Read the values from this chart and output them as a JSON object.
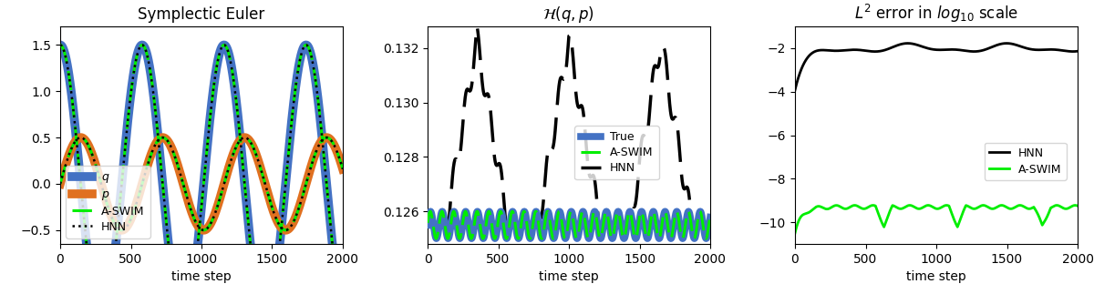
{
  "n_steps": 2000,
  "left_title": "Symplectic Euler",
  "right_title": "$L^2$ error in $log_{10}$ scale",
  "xlabel": "time step",
  "color_q": "#4472c4",
  "color_p": "#e07020",
  "color_aswim": "#00ee00",
  "color_true": "#4472c4",
  "left_ylim": [
    -0.65,
    1.7
  ],
  "left_yticks": [
    -0.5,
    0.0,
    0.5,
    1.0,
    1.5
  ],
  "mid_ylim": [
    0.1248,
    0.1328
  ],
  "mid_yticks": [
    0.126,
    0.128,
    0.13,
    0.132
  ],
  "right_ylim": [
    -11.0,
    -1.0
  ],
  "right_yticks": [
    -10,
    -8,
    -6,
    -4,
    -2
  ],
  "xlim": [
    0,
    2000
  ],
  "xticks": [
    0,
    500,
    1000,
    1500,
    2000
  ]
}
